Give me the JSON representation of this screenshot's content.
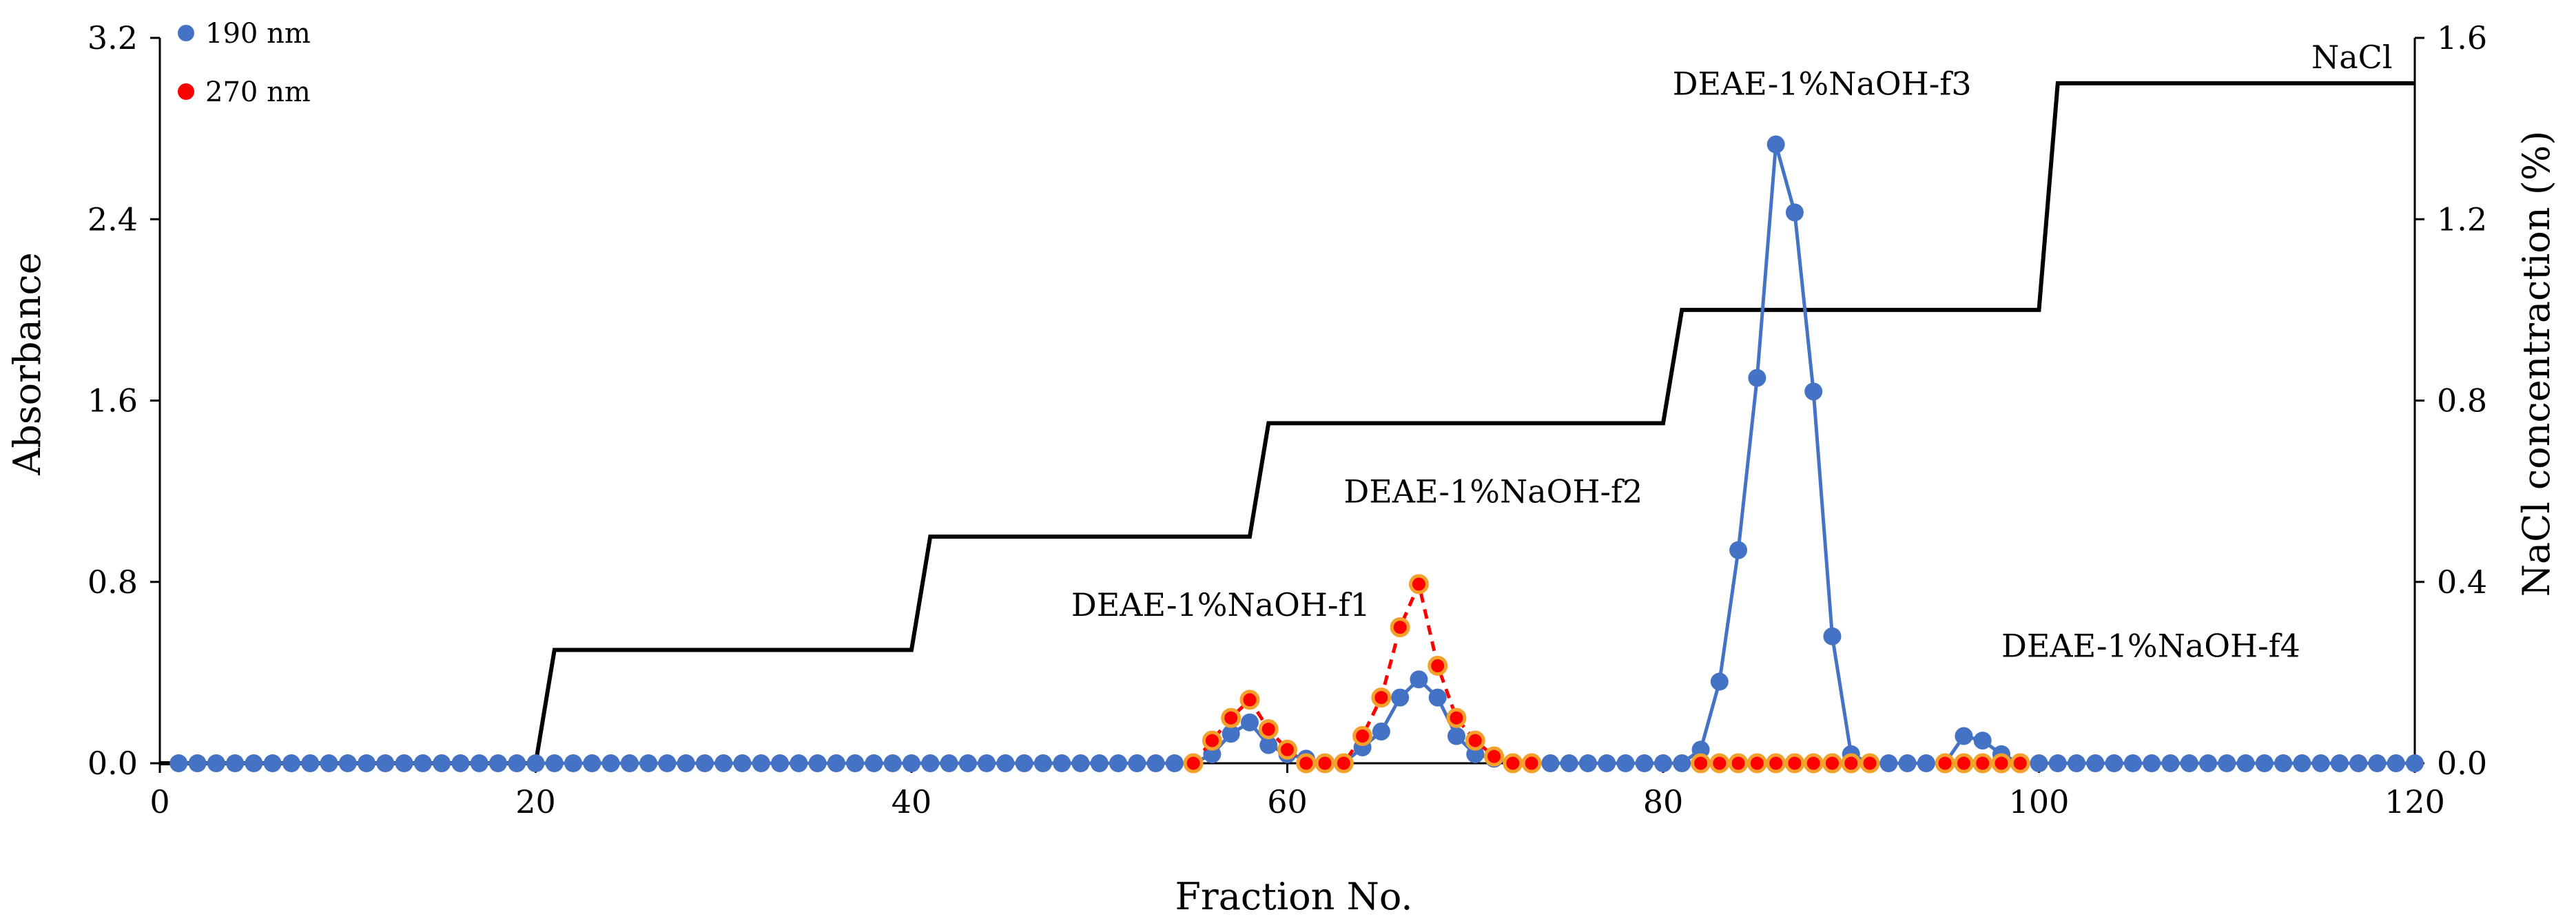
{
  "chart_data": {
    "type": "line",
    "xlabel": "Fraction No.",
    "ylabel": "Absorbance",
    "y2label": "NaCl concentraction (%)",
    "xlim": [
      0,
      120
    ],
    "ylim": [
      0,
      3.2
    ],
    "y2lim": [
      0,
      1.6
    ],
    "xticks": [
      "0",
      "20",
      "40",
      "60",
      "80",
      "100",
      "120"
    ],
    "yticks": [
      "0.0",
      "0.8",
      "1.6",
      "2.4",
      "3.2"
    ],
    "y2ticks": [
      "0.0",
      "0.4",
      "0.8",
      "1.2",
      "1.6"
    ],
    "grid": false,
    "legend_position": "top-left",
    "series": [
      {
        "name": "190 nm",
        "color": "#4472C4",
        "axis": "left",
        "line_style": "solid",
        "x": [
          1,
          2,
          3,
          4,
          5,
          6,
          7,
          8,
          9,
          10,
          11,
          12,
          13,
          14,
          15,
          16,
          17,
          18,
          19,
          20,
          21,
          22,
          23,
          24,
          25,
          26,
          27,
          28,
          29,
          30,
          31,
          32,
          33,
          34,
          35,
          36,
          37,
          38,
          39,
          40,
          41,
          42,
          43,
          44,
          45,
          46,
          47,
          48,
          49,
          50,
          51,
          52,
          53,
          54,
          55,
          56,
          57,
          58,
          59,
          60,
          61,
          62,
          63,
          64,
          65,
          66,
          67,
          68,
          69,
          70,
          71,
          72,
          73,
          74,
          75,
          76,
          77,
          78,
          79,
          80,
          81,
          82,
          83,
          84,
          85,
          86,
          87,
          88,
          89,
          90,
          91,
          92,
          93,
          94,
          95,
          96,
          97,
          98,
          99,
          100,
          101,
          102,
          103,
          104,
          105,
          106,
          107,
          108,
          109,
          110,
          111,
          112,
          113,
          114,
          115,
          116,
          117,
          118,
          119,
          120
        ],
        "values": [
          0,
          0,
          0,
          0,
          0,
          0,
          0,
          0,
          0,
          0,
          0,
          0,
          0,
          0,
          0,
          0,
          0,
          0,
          0,
          0,
          0,
          0,
          0,
          0,
          0,
          0,
          0,
          0,
          0,
          0,
          0,
          0,
          0,
          0,
          0,
          0,
          0,
          0,
          0,
          0,
          0,
          0,
          0,
          0,
          0,
          0,
          0,
          0,
          0,
          0,
          0,
          0,
          0,
          0,
          0,
          0.04,
          0.13,
          0.18,
          0.08,
          0.04,
          0.02,
          0,
          0,
          0.07,
          0.14,
          0.29,
          0.37,
          0.29,
          0.12,
          0.04,
          0.02,
          0,
          0,
          0,
          0,
          0,
          0,
          0,
          0,
          0,
          0,
          0.06,
          0.36,
          0.94,
          1.7,
          2.73,
          2.43,
          1.64,
          0.56,
          0.04,
          0,
          0,
          0,
          0,
          0,
          0.12,
          0.1,
          0.04,
          0,
          0,
          0,
          0,
          0,
          0,
          0,
          0,
          0,
          0,
          0,
          0,
          0,
          0,
          0,
          0,
          0,
          0,
          0,
          0,
          0,
          0
        ]
      },
      {
        "name": "270 nm",
        "color": "#FF0000",
        "axis": "left",
        "line_style": "dashed",
        "x": [
          55,
          56,
          57,
          58,
          59,
          60,
          61,
          62,
          63,
          64,
          65,
          66,
          67,
          68,
          69,
          70,
          71,
          72,
          73,
          82,
          83,
          84,
          85,
          86,
          87,
          88,
          89,
          90,
          91,
          95,
          96,
          97,
          98,
          99
        ],
        "values": [
          0,
          0.1,
          0.2,
          0.28,
          0.15,
          0.06,
          0,
          0,
          0,
          0.12,
          0.29,
          0.6,
          0.79,
          0.43,
          0.2,
          0.1,
          0.03,
          0,
          0,
          0,
          0,
          0,
          0,
          0,
          0,
          0,
          0,
          0,
          0,
          0,
          0,
          0,
          0,
          0
        ]
      },
      {
        "name": "NaCl",
        "color": "#000000",
        "axis": "right",
        "line_style": "step",
        "x": [
          0,
          20,
          21,
          40,
          41,
          58,
          59,
          80,
          81,
          100,
          101,
          120
        ],
        "values": [
          0,
          0,
          0.25,
          0.25,
          0.5,
          0.5,
          0.75,
          0.75,
          1.0,
          1.0,
          1.5,
          1.5
        ]
      }
    ],
    "annotations": [
      {
        "text": "DEAE-1%NaOH-f1",
        "x": 48.5,
        "y": 0.65
      },
      {
        "text": "DEAE-1%NaOH-f2",
        "x": 63,
        "y": 1.15
      },
      {
        "text": "DEAE-1%NaOH-f3",
        "x": 80.5,
        "y": 2.95
      },
      {
        "text": "DEAE-1%NaOH-f4",
        "x": 98,
        "y": 0.47
      },
      {
        "text": "NaCl",
        "x": 114.5,
        "y": 1.5
      }
    ],
    "legend": [
      {
        "label": "190 nm",
        "color": "#4472C4"
      },
      {
        "label": "270 nm",
        "color": "#FF0000"
      }
    ]
  }
}
